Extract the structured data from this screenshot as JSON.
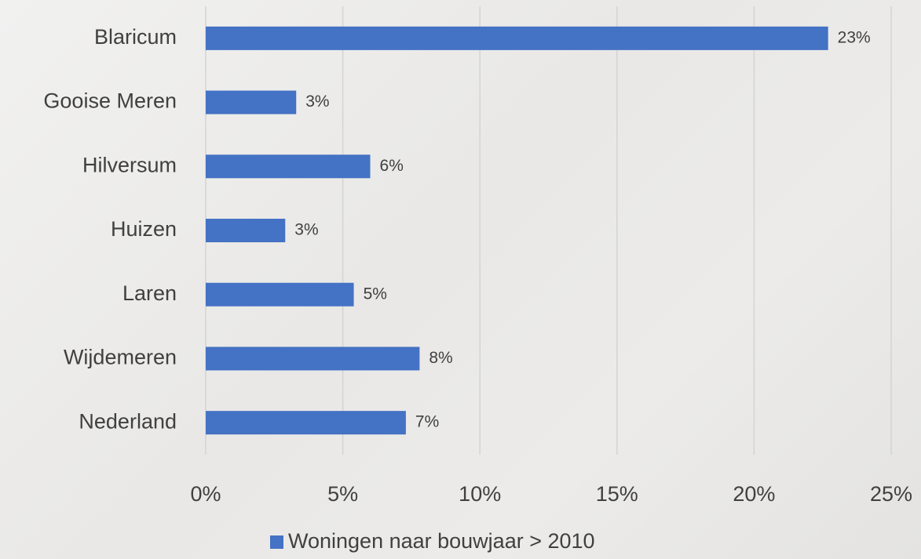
{
  "chart_data": {
    "type": "bar",
    "orientation": "horizontal",
    "categories": [
      "Blaricum",
      "Gooise Meren",
      "Hilversum",
      "Huizen",
      "Laren",
      "Wijdemeren",
      "Nederland"
    ],
    "series": [
      {
        "name": "Woningen naar bouwjaar > 2010",
        "color": "#4472c4",
        "values": [
          22.7,
          3.3,
          6.0,
          2.9,
          5.4,
          7.8,
          7.3
        ],
        "value_labels": [
          "23%",
          "3%",
          "6%",
          "3%",
          "5%",
          "8%",
          "7%"
        ]
      }
    ],
    "xlim": [
      0,
      25
    ],
    "xticks": [
      {
        "value": 0,
        "label": "0%"
      },
      {
        "value": 5,
        "label": "5%"
      },
      {
        "value": 10,
        "label": "10%"
      },
      {
        "value": 15,
        "label": "15%"
      },
      {
        "value": 20,
        "label": "20%"
      },
      {
        "value": 25,
        "label": "25%"
      }
    ],
    "grid": true,
    "legend": "bottom"
  }
}
